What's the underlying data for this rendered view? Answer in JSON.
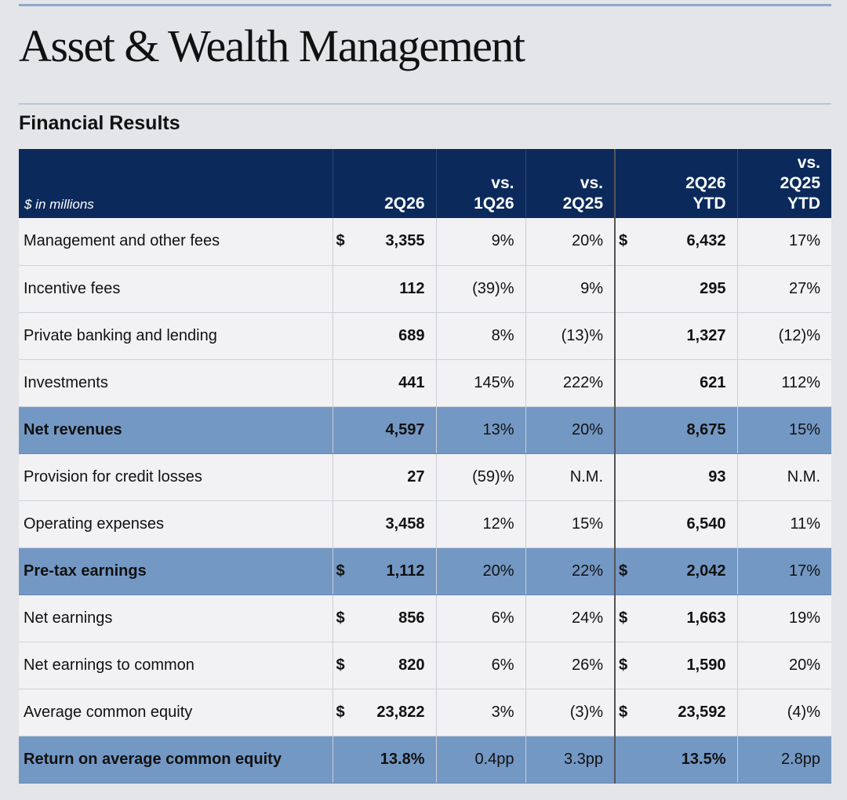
{
  "page": {
    "title": "Asset & Wealth Management",
    "section_title": "Financial Results"
  },
  "table": {
    "units_label": "$ in millions",
    "headers": {
      "q": "2Q26",
      "vs_prev_q": [
        "vs.",
        "1Q26"
      ],
      "vs_prev_y": [
        "vs.",
        "2Q25"
      ],
      "ytd": [
        "2Q26",
        "YTD"
      ],
      "vs_ytd": [
        "vs.",
        "2Q25",
        "YTD"
      ]
    },
    "rows": [
      {
        "label": "Management and other fees",
        "cur": "$",
        "q": "3,355",
        "vs_prev_q": "9%",
        "vs_prev_y": "20%",
        "ytd_cur": "$",
        "ytd": "6,432",
        "vs_ytd": "17%"
      },
      {
        "label": "Incentive fees",
        "cur": "",
        "q": "112",
        "vs_prev_q": "(39)%",
        "vs_prev_y": "9%",
        "ytd_cur": "",
        "ytd": "295",
        "vs_ytd": "27%"
      },
      {
        "label": "Private banking and lending",
        "cur": "",
        "q": "689",
        "vs_prev_q": "8%",
        "vs_prev_y": "(13)%",
        "ytd_cur": "",
        "ytd": "1,327",
        "vs_ytd": "(12)%"
      },
      {
        "label": "Investments",
        "cur": "",
        "q": "441",
        "vs_prev_q": "145%",
        "vs_prev_y": "222%",
        "ytd_cur": "",
        "ytd": "621",
        "vs_ytd": "112%"
      },
      {
        "label": "Net revenues",
        "cur": "",
        "q": "4,597",
        "vs_prev_q": "13%",
        "vs_prev_y": "20%",
        "ytd_cur": "",
        "ytd": "8,675",
        "vs_ytd": "15%"
      },
      {
        "label": "Provision for credit losses",
        "cur": "",
        "q": "27",
        "vs_prev_q": "(59)%",
        "vs_prev_y": "N.M.",
        "ytd_cur": "",
        "ytd": "93",
        "vs_ytd": "N.M."
      },
      {
        "label": "Operating expenses",
        "cur": "",
        "q": "3,458",
        "vs_prev_q": "12%",
        "vs_prev_y": "15%",
        "ytd_cur": "",
        "ytd": "6,540",
        "vs_ytd": "11%"
      },
      {
        "label": "Pre-tax earnings",
        "cur": "$",
        "q": "1,112",
        "vs_prev_q": "20%",
        "vs_prev_y": "22%",
        "ytd_cur": "$",
        "ytd": "2,042",
        "vs_ytd": "17%"
      },
      {
        "label": "Net earnings",
        "cur": "$",
        "q": "856",
        "vs_prev_q": "6%",
        "vs_prev_y": "24%",
        "ytd_cur": "$",
        "ytd": "1,663",
        "vs_ytd": "19%"
      },
      {
        "label": "Net earnings to common",
        "cur": "$",
        "q": "820",
        "vs_prev_q": "6%",
        "vs_prev_y": "26%",
        "ytd_cur": "$",
        "ytd": "1,590",
        "vs_ytd": "20%"
      },
      {
        "label": "Average common equity",
        "cur": "$",
        "q": "23,822",
        "vs_prev_q": "3%",
        "vs_prev_y": "(3)%",
        "ytd_cur": "$",
        "ytd": "23,592",
        "vs_ytd": "(4)%"
      },
      {
        "label": "Return on average common equity",
        "cur": "",
        "q": "13.8%",
        "vs_prev_q": "0.4pp",
        "vs_prev_y": "3.3pp",
        "ytd_cur": "",
        "ytd": "13.5%",
        "vs_ytd": "2.8pp"
      }
    ]
  }
}
